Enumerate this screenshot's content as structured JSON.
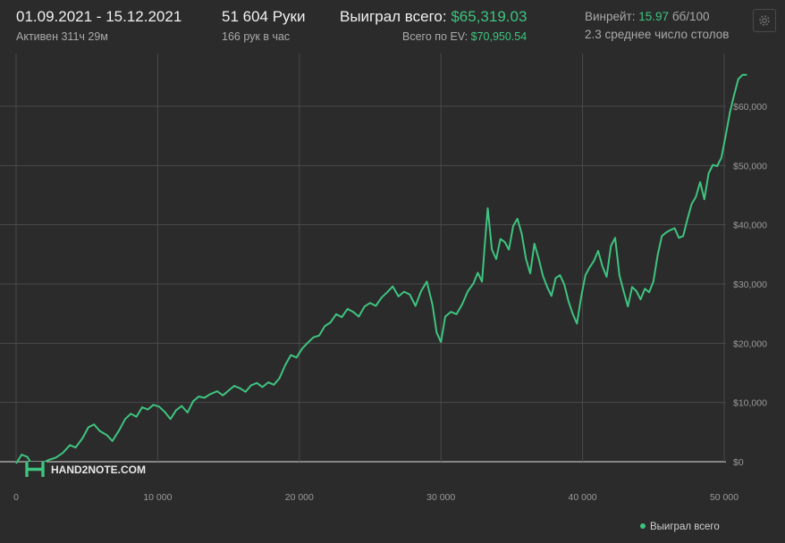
{
  "header": {
    "date_range": "01.09.2021 - 15.12.2021",
    "active_time": "Активен 311ч 29м",
    "hands": "51 604 Руки",
    "hands_per_hour": "166 рук в час",
    "won_total_label": "Выиграл всего:",
    "won_total_value": "$65,319.03",
    "ev_label": "Всего по EV:",
    "ev_value": "$70,950.54",
    "winrate_label": "Винрейт:",
    "winrate_value": "15.97",
    "winrate_unit": "бб/100",
    "avg_tables": "2.3 среднее число столов"
  },
  "icons": {
    "settings": "gear-icon"
  },
  "watermark": "HAND2NOTE.COM",
  "colors": {
    "background": "#2b2b2b",
    "series": "#3ec47f",
    "grid": "#4a4a4a",
    "zero_line": "#bdbdbd",
    "tick_text": "#9a9a9a"
  },
  "chart_data": {
    "type": "line",
    "xlabel": "",
    "ylabel": "",
    "xlim": [
      0,
      51604
    ],
    "ylim": [
      0,
      67000
    ],
    "x_ticks": [
      0,
      10000,
      20000,
      30000,
      40000,
      50000
    ],
    "x_tick_labels": [
      "0",
      "10 000",
      "20 000",
      "30 000",
      "40 000",
      "50 000"
    ],
    "y_ticks": [
      0,
      10000,
      20000,
      30000,
      40000,
      50000,
      60000
    ],
    "y_tick_labels": [
      "$0",
      "$10,000",
      "$20,000",
      "$30,000",
      "$40,000",
      "$50,000",
      "$60,000"
    ],
    "grid": true,
    "legend_position": "bottom-right",
    "series": [
      {
        "name": "Выиграл всего",
        "x": [
          0,
          400,
          800,
          1200,
          1700,
          2300,
          2800,
          3300,
          3800,
          4200,
          4700,
          5100,
          5500,
          5900,
          6400,
          6800,
          7300,
          7700,
          8100,
          8500,
          8900,
          9300,
          9700,
          10100,
          10500,
          10900,
          11300,
          11700,
          12100,
          12500,
          12900,
          13300,
          13700,
          14200,
          14600,
          15000,
          15400,
          15800,
          16200,
          16600,
          17000,
          17400,
          17800,
          18200,
          18600,
          19000,
          19400,
          19800,
          20200,
          20600,
          21000,
          21400,
          21800,
          22200,
          22600,
          23000,
          23400,
          23800,
          24200,
          24600,
          25000,
          25400,
          25800,
          26200,
          26600,
          27000,
          27400,
          27800,
          28200,
          28600,
          29000,
          29400,
          29700,
          30000,
          30300,
          30700,
          31100,
          31500,
          31900,
          32300,
          32600,
          32900,
          33100,
          33300,
          33600,
          33900,
          34200,
          34500,
          34800,
          35100,
          35400,
          35700,
          36000,
          36300,
          36600,
          36900,
          37200,
          37500,
          37800,
          38100,
          38400,
          38700,
          39000,
          39300,
          39600,
          39900,
          40200,
          40500,
          40800,
          41100,
          41400,
          41700,
          42000,
          42300,
          42600,
          42900,
          43200,
          43500,
          43800,
          44100,
          44400,
          44700,
          45000,
          45300,
          45600,
          45900,
          46200,
          46500,
          46800,
          47100,
          47400,
          47700,
          48000,
          48300,
          48600,
          48900,
          49200,
          49500,
          49800,
          50100,
          50400,
          50700,
          51000,
          51300,
          51604
        ],
        "y": [
          -300,
          1200,
          800,
          -800,
          -400,
          300,
          700,
          1500,
          2800,
          2400,
          4000,
          5800,
          6300,
          5200,
          4500,
          3500,
          5400,
          7200,
          8100,
          7600,
          9200,
          8800,
          9600,
          9300,
          8400,
          7200,
          8700,
          9400,
          8300,
          10200,
          11000,
          10800,
          11400,
          11900,
          11200,
          12000,
          12800,
          12400,
          11800,
          12900,
          13300,
          12600,
          13400,
          13000,
          14100,
          16300,
          18000,
          17600,
          19100,
          20100,
          21000,
          21300,
          22900,
          23500,
          24900,
          24400,
          25800,
          25300,
          24500,
          26200,
          26800,
          26300,
          27700,
          28600,
          29600,
          27900,
          28700,
          28200,
          26300,
          28800,
          30400,
          26500,
          21800,
          20200,
          24500,
          25300,
          24900,
          26600,
          28800,
          30100,
          31900,
          30400,
          36800,
          42800,
          35800,
          34200,
          37600,
          37100,
          35800,
          39800,
          41000,
          38500,
          34300,
          31800,
          36800,
          34300,
          31400,
          29500,
          28000,
          31000,
          31500,
          30000,
          27100,
          25000,
          23300,
          27800,
          31500,
          32800,
          33900,
          35600,
          33000,
          31200,
          36400,
          37800,
          31500,
          28800,
          26200,
          29500,
          28800,
          27400,
          29200,
          28600,
          30400,
          34900,
          38100,
          38700,
          39100,
          39400,
          37800,
          38100,
          40900,
          43500,
          44700,
          47200,
          44300,
          48700,
          50100,
          49900,
          51300,
          55000,
          58900,
          61900,
          64600,
          65300,
          65319
        ]
      }
    ]
  }
}
